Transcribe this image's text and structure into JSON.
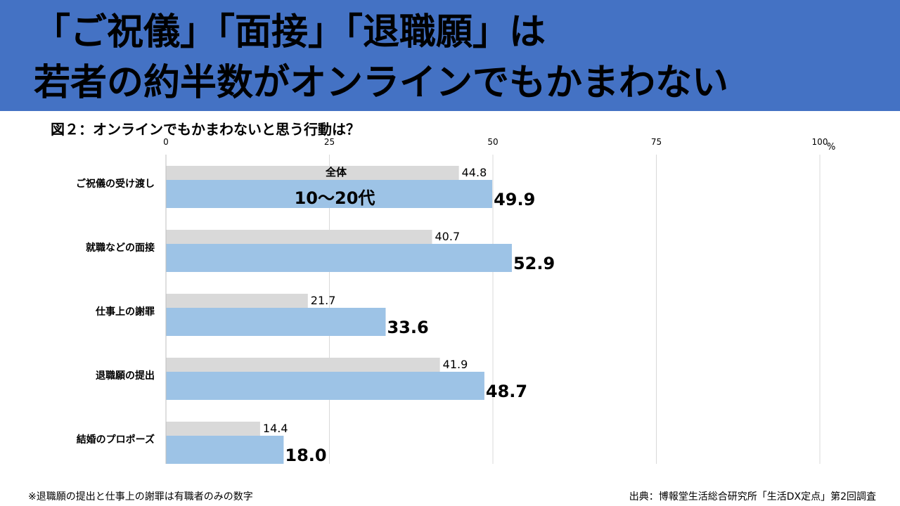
{
  "header": {
    "line1": "「ご祝儀」「面接」「退職願」は",
    "line2": "若者の約半数がオンラインでもかまわない",
    "background_color": "#4472c4"
  },
  "chart_data": {
    "type": "bar",
    "orientation": "horizontal",
    "title": "図２：オンラインでもかまわないと思う行動は？",
    "unit": "%",
    "xlim": [
      0,
      100
    ],
    "ticks": [
      0,
      25,
      50,
      75,
      100
    ],
    "grid": true,
    "categories": [
      "ご祝儀の受け渡し",
      "就職などの面接",
      "仕事上の謝罪",
      "退職願の提出",
      "結婚のプロポーズ"
    ],
    "series": [
      {
        "name": "全体",
        "values": [
          44.8,
          40.7,
          21.7,
          41.9,
          14.4
        ],
        "color": "#d9d9d9"
      },
      {
        "name": "10～20代",
        "values": [
          49.9,
          52.9,
          33.6,
          48.7,
          18.0
        ],
        "color": "#9dc3e6"
      }
    ]
  },
  "footer": {
    "note": "※退職願の提出と仕事上の謝罪は有職者のみの数字",
    "source": "出典：博報堂生活総合研究所「生活DX定点」第2回調査"
  }
}
